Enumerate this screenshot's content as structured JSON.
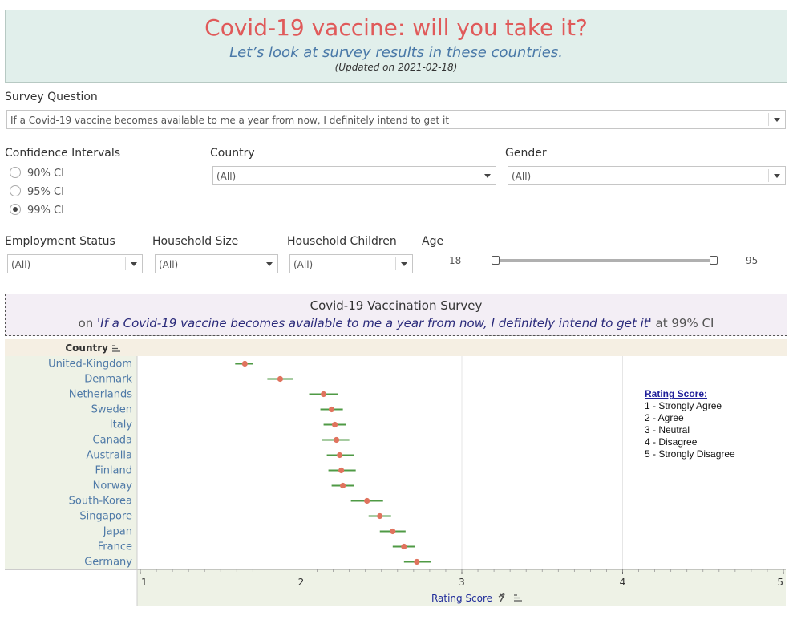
{
  "header": {
    "title": "Covid-19 vaccine: will you take it?",
    "subtitle": "Let’s look at survey results in these countries.",
    "updated": "(Updated on 2021-02-18)"
  },
  "filters": {
    "survey_question": {
      "label": "Survey Question",
      "value": "If a Covid-19 vaccine becomes available to me a year from now, I definitely intend to get it"
    },
    "confidence_intervals": {
      "label": "Confidence Intervals",
      "options": [
        "90% CI",
        "95% CI",
        "99% CI"
      ],
      "selected": "99% CI"
    },
    "country": {
      "label": "Country",
      "value": "(All)"
    },
    "gender": {
      "label": "Gender",
      "value": "(All)"
    },
    "employment_status": {
      "label": "Employment Status",
      "value": "(All)"
    },
    "household_size": {
      "label": "Household Size",
      "value": "(All)"
    },
    "household_children": {
      "label": "Household Children",
      "value": "(All)"
    },
    "age": {
      "label": "Age",
      "min": "18",
      "max": "95"
    }
  },
  "chart_title": {
    "line1": "Covid-19 Vaccination Survey",
    "prefix": "on",
    "question": "If a Covid-19 vaccine becomes available to me a year from now, I definitely intend to get it",
    "suffix": "at 99% CI"
  },
  "legend": {
    "title": "Rating Score:",
    "items": [
      "1 - Strongly Agree",
      "2 - Agree",
      "3 - Neutral",
      "4 - Disagree",
      "5 - Strongly Disagree"
    ]
  },
  "chart_data": {
    "type": "scatter",
    "xlabel": "Rating Score",
    "ylabel": "Country",
    "xlim": [
      1,
      5
    ],
    "xticks": [
      "1",
      "2",
      "3",
      "4",
      "5"
    ],
    "categories": [
      "United-Kingdom",
      "Denmark",
      "Netherlands",
      "Sweden",
      "Italy",
      "Canada",
      "Australia",
      "Finland",
      "Norway",
      "South-Korea",
      "Singapore",
      "Japan",
      "France",
      "Germany"
    ],
    "values": [
      1.65,
      1.87,
      2.14,
      2.19,
      2.21,
      2.22,
      2.24,
      2.25,
      2.26,
      2.41,
      2.49,
      2.57,
      2.64,
      2.72
    ],
    "ci_low": [
      1.59,
      1.79,
      2.05,
      2.12,
      2.14,
      2.13,
      2.16,
      2.17,
      2.19,
      2.31,
      2.42,
      2.49,
      2.57,
      2.64
    ],
    "ci_high": [
      1.7,
      1.95,
      2.23,
      2.26,
      2.28,
      2.3,
      2.33,
      2.34,
      2.33,
      2.51,
      2.56,
      2.65,
      2.71,
      2.81
    ],
    "colors": {
      "point": "#e0735e",
      "whisker": "#4f9a45",
      "axis_panel": "#eef2e6",
      "header_band": "#f5efe3"
    },
    "grid": "vertical"
  }
}
